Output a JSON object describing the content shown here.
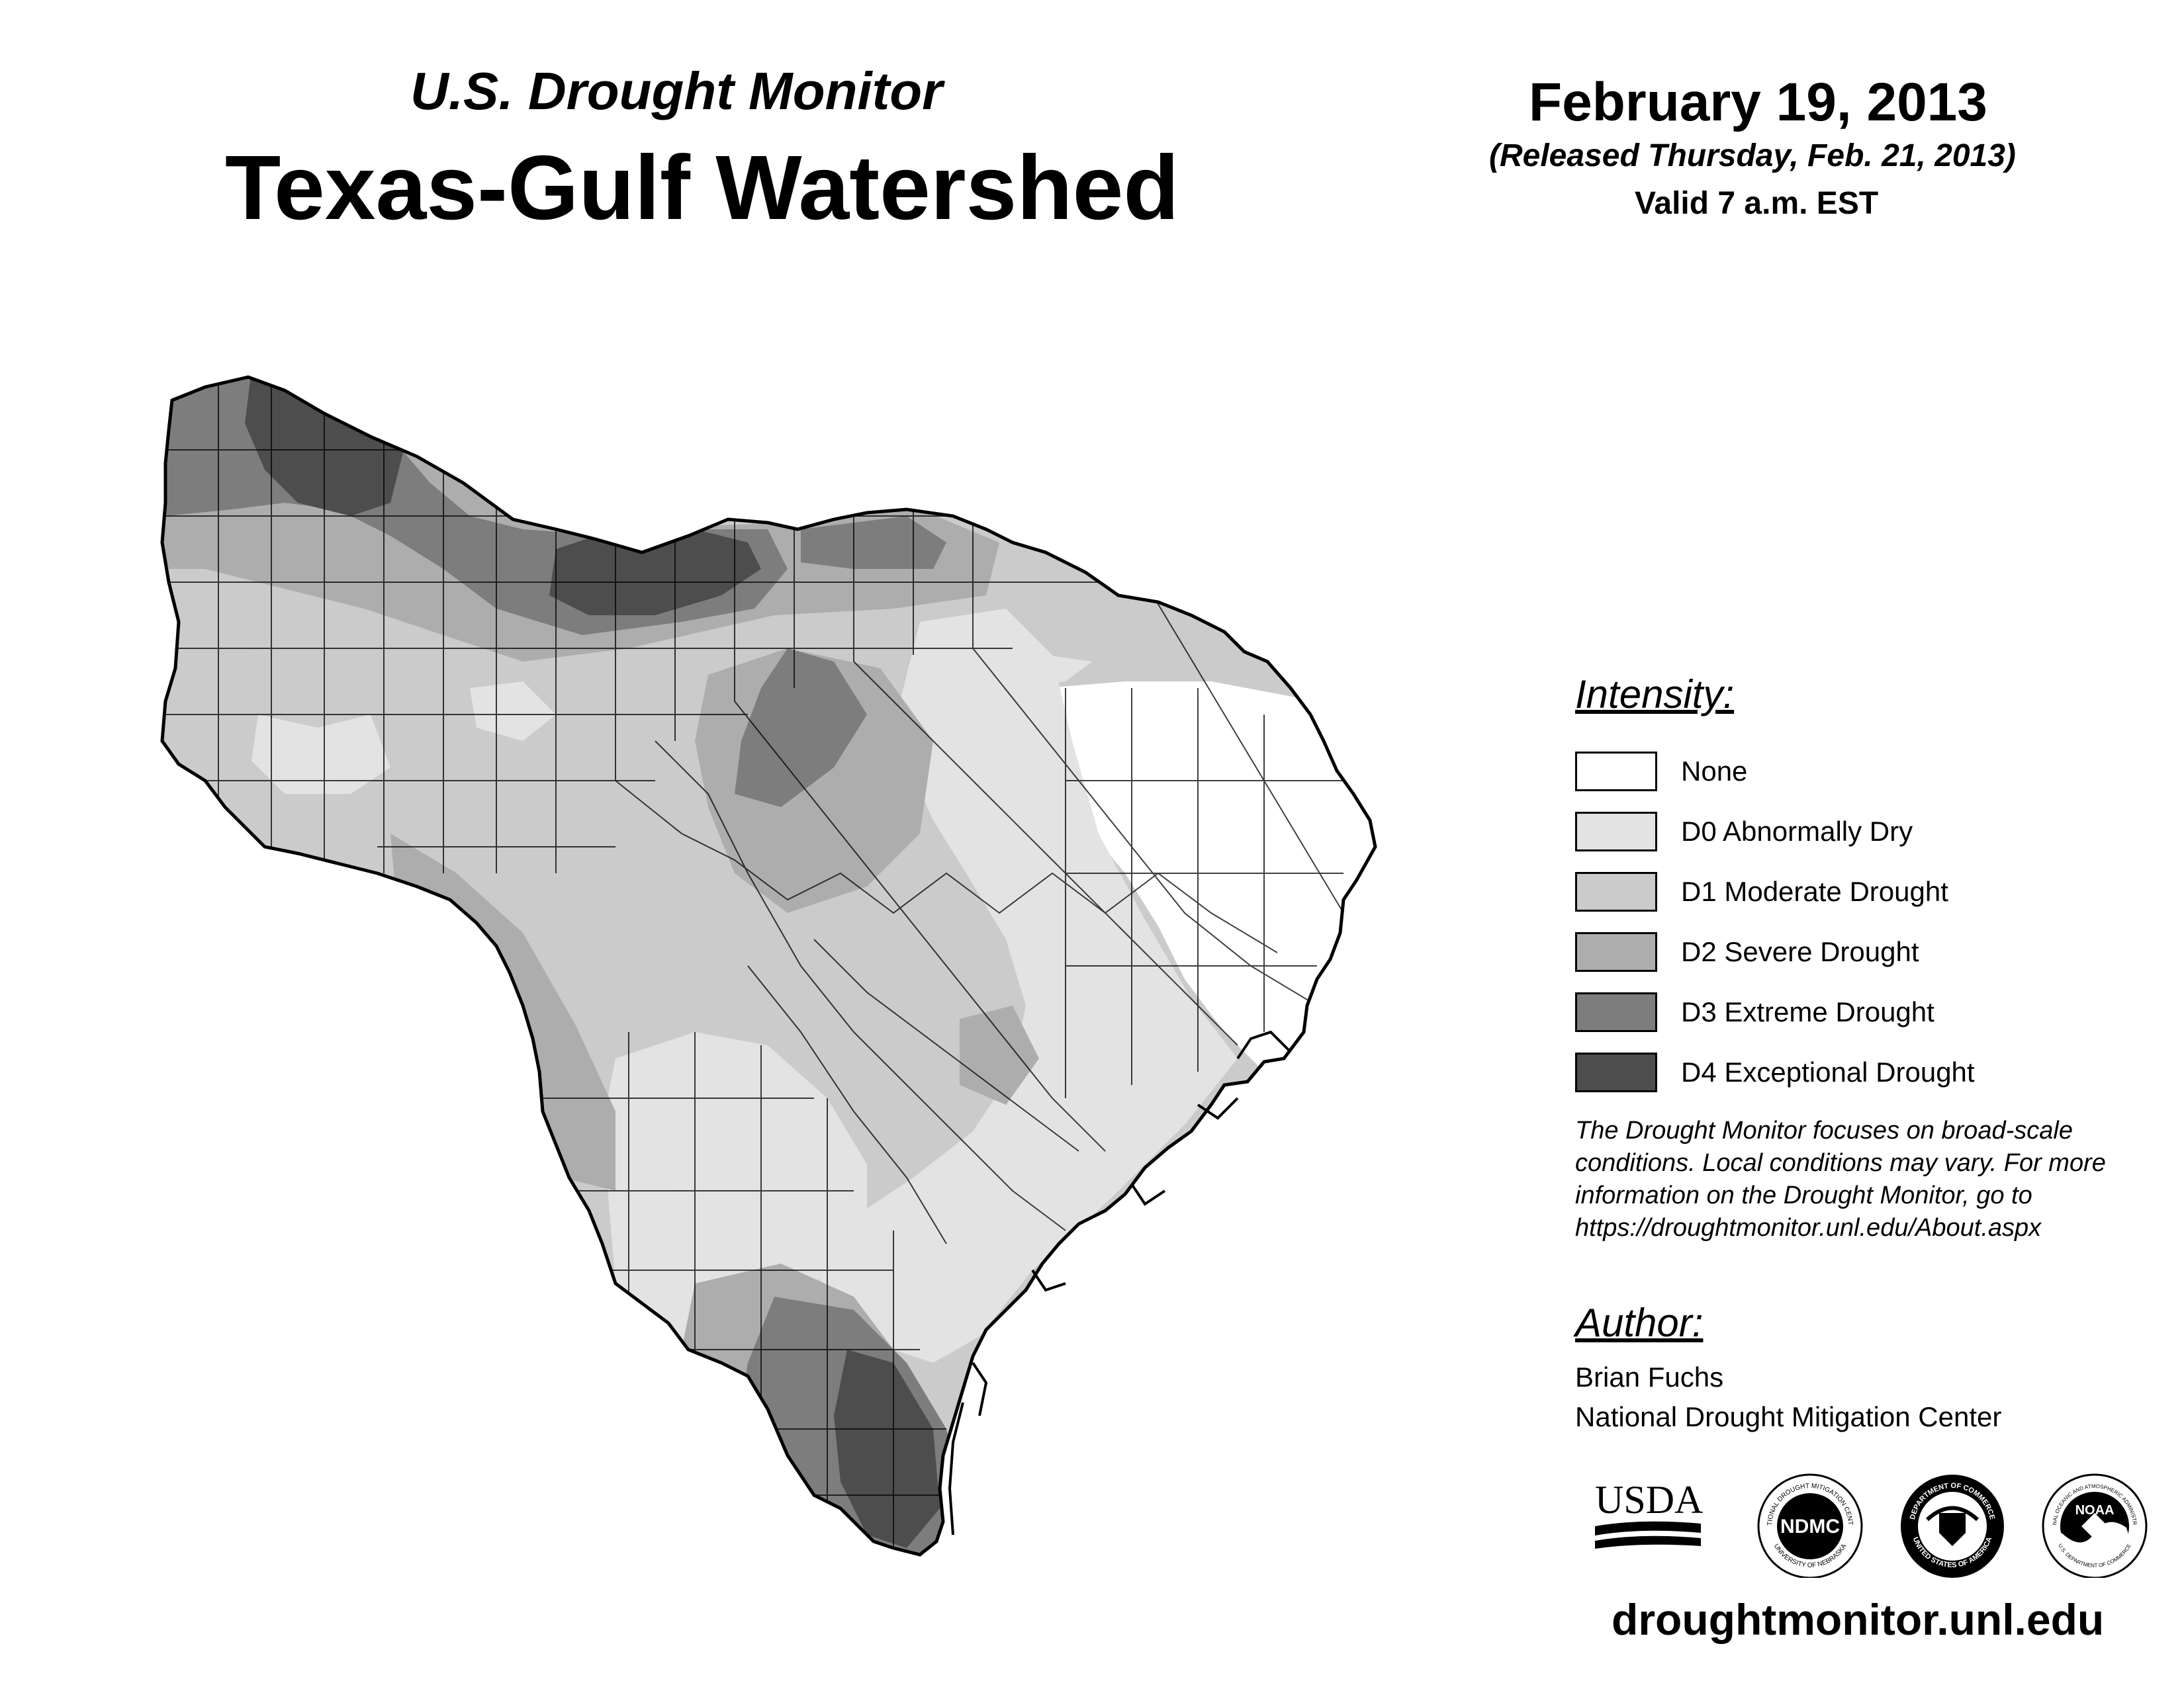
{
  "header": {
    "subtitle": "U.S. Drought Monitor",
    "title": "Texas-Gulf Watershed",
    "date": "February 19, 2013",
    "released": "(Released Thursday, Feb. 21, 2013)",
    "valid": "Valid 7 a.m. EST"
  },
  "legend": {
    "heading": "Intensity:",
    "items": [
      {
        "label": "None",
        "color": "#ffffff"
      },
      {
        "label": "D0 Abnormally Dry",
        "color": "#e3e3e3"
      },
      {
        "label": "D1 Moderate Drought",
        "color": "#cbcbcb"
      },
      {
        "label": "D2 Severe Drought",
        "color": "#adadad"
      },
      {
        "label": "D3 Extreme Drought",
        "color": "#7d7d7d"
      },
      {
        "label": "D4 Exceptional Drought",
        "color": "#4d4d4d"
      }
    ]
  },
  "disclaimer": "The Drought Monitor focuses on broad-scale conditions. Local conditions may vary. For more information on the Drought Monitor, go to https://droughtmonitor.unl.edu/About.aspx",
  "author": {
    "heading": "Author:",
    "name": "Brian Fuchs",
    "organization": "National Drought Mitigation Center"
  },
  "logos": {
    "usda": "USDA",
    "ndmc": "NDMC",
    "ndmc_ring_top": "NATIONAL DROUGHT MITIGATION CENTER",
    "ndmc_ring_bottom": "UNIVERSITY OF NEBRASKA",
    "doc_ring_top": "DEPARTMENT OF COMMERCE",
    "doc_ring_bottom": "UNITED STATES OF AMERICA",
    "noaa": "NOAA",
    "noaa_ring_top": "NATIONAL OCEANIC AND ATMOSPHERIC ADMINISTRATION",
    "noaa_ring_bottom": "U.S. DEPARTMENT OF COMMERCE"
  },
  "website": "droughtmonitor.unl.edu"
}
